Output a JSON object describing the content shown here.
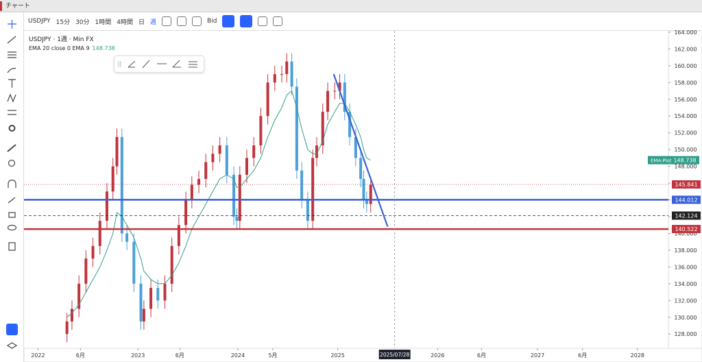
{
  "ui": {
    "window_title": "チャート",
    "symbol": "USDJPY",
    "intervals": [
      "15分",
      "30分",
      "1時間",
      "4時間",
      "日",
      "週"
    ],
    "price_type": "Bid",
    "legend_main": "USDJPY · 1週 · Min FX",
    "legend_ema": "EMA 20 close 0 EMA 9"
  },
  "chart_data": {
    "type": "candlestick",
    "xlim": [
      2021.86,
      2028.31
    ],
    "ylim": [
      126.3,
      164.16
    ],
    "xticks": [
      2022,
      {
        "value": 2022.425,
        "label": "6月"
      },
      2023,
      {
        "value": 2023.42,
        "label": "6月"
      },
      2024,
      {
        "value": 2024.35,
        "label": "5月"
      },
      2025,
      2026,
      {
        "value": 2026.44,
        "label": "6月"
      },
      2027,
      {
        "value": 2027.45,
        "label": "6月"
      },
      2028
    ],
    "yticks": [
      {
        "value": 128,
        "label": "128.000"
      },
      {
        "value": 130,
        "label": "130.000"
      },
      {
        "value": 132,
        "label": "132.000"
      },
      {
        "value": 134,
        "label": "134.000"
      },
      {
        "value": 136,
        "label": "136.000"
      },
      {
        "value": 138,
        "label": "138.000"
      },
      {
        "value": 140,
        "label": "140.000"
      },
      {
        "value": 142,
        "label": "142.000"
      },
      {
        "value": 144,
        "label": "144.000"
      },
      {
        "value": 146,
        "label": "146.000"
      },
      {
        "value": 148,
        "label": "148.000"
      },
      {
        "value": 150,
        "label": "150.000"
      },
      {
        "value": 152,
        "label": "152.000"
      },
      {
        "value": 154,
        "label": "154.000"
      },
      {
        "value": 156,
        "label": "156.000"
      },
      {
        "value": 158,
        "label": "158.000"
      },
      {
        "value": 160,
        "label": "160.000"
      },
      {
        "value": 162,
        "label": "162.000"
      },
      {
        "value": 164,
        "label": "164.000"
      }
    ],
    "up_color": "#c0343c",
    "down_color": "#4a9fd8",
    "candles": {
      "x": [
        2022.29,
        2022.34,
        2022.41,
        2022.48,
        2022.55,
        2022.62,
        2022.69,
        2022.75,
        2022.79,
        2022.84,
        2022.89,
        2022.96,
        2023.03,
        2023.06,
        2023.13,
        2023.2,
        2023.27,
        2023.34,
        2023.41,
        2023.48,
        2023.54,
        2023.61,
        2023.68,
        2023.75,
        2023.82,
        2023.89,
        2023.96,
        2023.99,
        2024.02,
        2024.09,
        2024.16,
        2024.23,
        2024.3,
        2024.37,
        2024.44,
        2024.49,
        2024.54,
        2024.59,
        2024.64,
        2024.7,
        2024.75,
        2024.79,
        2024.85,
        2024.9,
        2024.97,
        2025.02,
        2025.07,
        2025.12,
        2025.18,
        2025.23,
        2025.26,
        2025.29,
        2025.33
      ],
      "open": [
        128,
        129.5,
        131,
        134,
        137,
        138.5,
        141.5,
        145,
        148,
        151.5,
        140,
        139,
        134,
        129.5,
        131,
        133.5,
        132,
        134,
        138.5,
        141,
        144,
        145.8,
        146.5,
        148.5,
        149.5,
        150.5,
        147,
        142,
        141.5,
        147,
        149,
        150.5,
        154,
        158,
        159,
        159,
        160.5,
        157.5,
        147.5,
        144,
        141.5,
        149,
        150.5,
        154.5,
        157,
        157,
        158,
        154.5,
        151.5,
        149,
        146.5,
        144,
        143.5
      ],
      "high": [
        130.5,
        132,
        135,
        138,
        139.5,
        142.5,
        146,
        149,
        152.5,
        152.5,
        141,
        140,
        135,
        132,
        134.5,
        134.5,
        135,
        139.5,
        142,
        145,
        146.8,
        147.5,
        149.5,
        150.5,
        151.5,
        151.5,
        148,
        143,
        148,
        150,
        151.5,
        155,
        159,
        160,
        160,
        161.5,
        161.5,
        158.5,
        148.5,
        145,
        150,
        151.5,
        155.5,
        158,
        158,
        159,
        159,
        155.5,
        152.5,
        150,
        147.5,
        145,
        146.8
      ],
      "low": [
        127,
        128.5,
        130,
        133,
        136,
        137.5,
        140.5,
        144,
        147,
        139,
        138,
        133,
        128.5,
        128.5,
        130,
        131,
        131,
        133,
        137.5,
        140,
        143,
        144.8,
        145.5,
        147.5,
        148.5,
        146,
        141,
        140.5,
        140.5,
        146,
        148,
        149.5,
        153,
        157,
        158,
        158,
        156.5,
        146.5,
        143,
        140.5,
        140.5,
        148,
        149.5,
        153.5,
        156,
        156,
        153.5,
        150.5,
        148,
        145.5,
        143,
        142.5,
        142.5
      ],
      "close": [
        129.5,
        131,
        134,
        137,
        138.5,
        141.5,
        145,
        148,
        151.5,
        140,
        139,
        134,
        129.5,
        131,
        133.5,
        132,
        134,
        138.5,
        141,
        144,
        145.8,
        146.5,
        148.5,
        149.5,
        150.5,
        147,
        142,
        141.5,
        147,
        149,
        150.5,
        154,
        158,
        159,
        159,
        160.5,
        157.5,
        147.5,
        144,
        141.5,
        149,
        150.5,
        154.5,
        157,
        157,
        158,
        154.5,
        151.5,
        149,
        146.5,
        144,
        143.5,
        145.8
      ]
    },
    "ema": {
      "name": "EMA:Plot",
      "color": "#2f9e8a",
      "values": [
        130,
        130.5,
        131.5,
        133,
        134.5,
        136,
        138,
        140,
        142.5,
        142,
        141,
        139.5,
        137,
        135.5,
        134.5,
        134,
        134,
        135,
        136.5,
        138.5,
        140.5,
        142,
        143.5,
        145,
        146.5,
        147,
        146.5,
        145.5,
        145.5,
        146.5,
        147.5,
        149,
        151.5,
        153.5,
        155,
        156.5,
        157,
        155,
        152.5,
        150,
        149.5,
        149.5,
        151,
        153,
        154.5,
        155.5,
        155.5,
        154.5,
        153,
        151.5,
        150,
        149,
        148.738
      ]
    },
    "hlines": [
      {
        "value": 145.841,
        "color": "#c0343c",
        "style": "dotted"
      },
      {
        "value": 144.012,
        "color": "#3a62d6",
        "style": "solid"
      },
      {
        "value": 142.124,
        "color": "#222222",
        "style": "dashed"
      },
      {
        "value": 140.522,
        "color": "#c0343c",
        "style": "solid"
      }
    ],
    "trendline": {
      "x": [
        2024.96,
        2025.5
      ],
      "y": [
        159,
        140.8
      ],
      "color": "#3a62d6"
    },
    "crosshair": {
      "x": 2025.57,
      "label": "2025/07/28"
    }
  }
}
